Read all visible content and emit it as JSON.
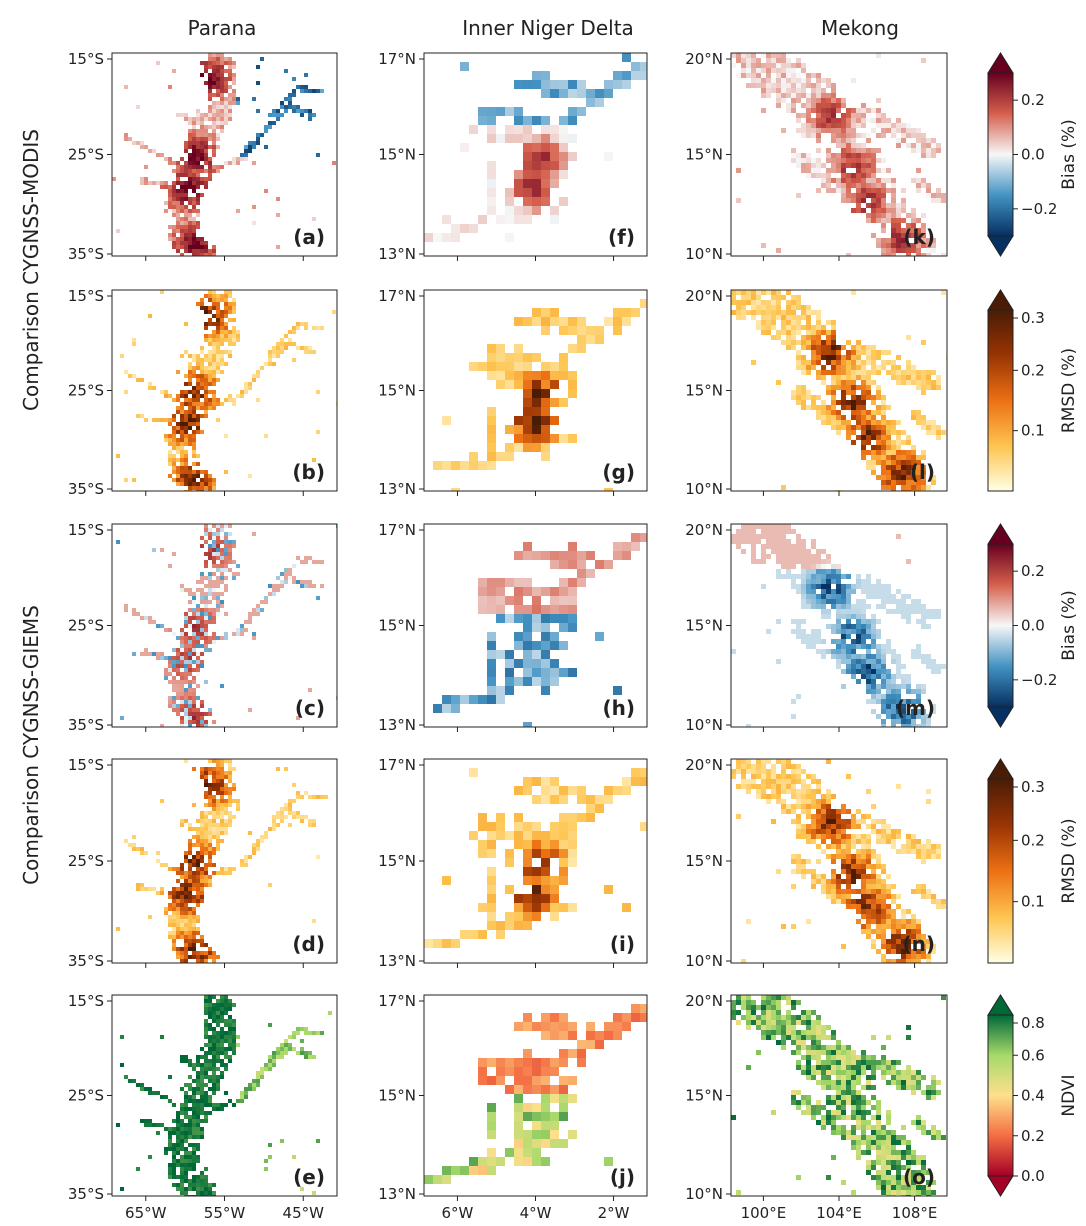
{
  "columns": [
    {
      "title": "Parana",
      "x_ticks": [
        "65°W",
        "55°W",
        "45°W"
      ],
      "y_ticks": [
        "15°S",
        "25°S",
        "35°S"
      ],
      "region": "parana"
    },
    {
      "title": "Inner Niger Delta",
      "x_ticks": [
        "6°W",
        "4°W",
        "2°W"
      ],
      "y_ticks": [
        "17°N",
        "15°N",
        "13°N"
      ],
      "region": "niger"
    },
    {
      "title": "Mekong",
      "x_ticks": [
        "100°E",
        "104°E",
        "108°E"
      ],
      "y_ticks": [
        "20°N",
        "15°N",
        "10°N"
      ],
      "region": "mekong"
    }
  ],
  "row_groups": [
    {
      "label": "Comparison CYGNSS-MODIS",
      "rows": [
        0,
        1
      ]
    },
    {
      "label": "Comparison CYGNSS-GIEMS",
      "rows": [
        2,
        3
      ]
    }
  ],
  "rows": [
    {
      "metric": "Bias (%)",
      "colormap": "RdBu_r",
      "range": [
        -0.3,
        0.3
      ],
      "ticks": [
        "0.2",
        "0.0",
        "−0.2"
      ],
      "panel_labels": [
        "(a)",
        "(f)",
        "(k)"
      ]
    },
    {
      "metric": "RMSD (%)",
      "colormap": "YlOrBr",
      "range": [
        0.0,
        0.3
      ],
      "ticks": [
        "0.3",
        "0.2",
        "0.1"
      ],
      "panel_labels": [
        "(b)",
        "(g)",
        "(l)"
      ]
    },
    {
      "metric": "Bias (%)",
      "colormap": "RdBu_r",
      "range": [
        -0.3,
        0.3
      ],
      "ticks": [
        "0.2",
        "0.0",
        "−0.2"
      ],
      "panel_labels": [
        "(c)",
        "(h)",
        "(m)"
      ]
    },
    {
      "metric": "RMSD (%)",
      "colormap": "YlOrBr",
      "range": [
        0.0,
        0.3
      ],
      "ticks": [
        "0.3",
        "0.2",
        "0.1"
      ],
      "panel_labels": [
        "(d)",
        "(i)",
        "(n)"
      ]
    },
    {
      "metric": "NDVI",
      "colormap": "RdYlGn",
      "range": [
        0.0,
        0.8
      ],
      "ticks": [
        "0.8",
        "0.6",
        "0.4",
        "0.2",
        "0.0"
      ],
      "panel_labels": [
        "(e)",
        "(j)",
        "(o)"
      ]
    }
  ],
  "chart_data": {
    "type": "heatmap",
    "description_kind": "geographic grid maps, 5 rows x 3 columns",
    "colorbars": [
      {
        "label": "Bias (%)",
        "min": -0.3,
        "max": 0.3,
        "ticks": [
          0.2,
          0.0,
          -0.2
        ],
        "extend": "both",
        "colors": [
          "#053061",
          "#4393c3",
          "#f7f7f7",
          "#d6604d",
          "#67001f"
        ]
      },
      {
        "label": "RMSD (%)",
        "min": 0.0,
        "max": 0.3,
        "ticks": [
          0.1,
          0.2,
          0.3
        ],
        "extend": "max",
        "colors": [
          "#ffffe5",
          "#fec44f",
          "#ec7014",
          "#993404",
          "#4a1c05"
        ]
      },
      {
        "label": "Bias (%)",
        "min": -0.3,
        "max": 0.3,
        "ticks": [
          0.2,
          0.0,
          -0.2
        ],
        "extend": "both",
        "colors": [
          "#053061",
          "#4393c3",
          "#f7f7f7",
          "#d6604d",
          "#67001f"
        ]
      },
      {
        "label": "RMSD (%)",
        "min": 0.0,
        "max": 0.3,
        "ticks": [
          0.1,
          0.2,
          0.3
        ],
        "extend": "max",
        "colors": [
          "#ffffe5",
          "#fec44f",
          "#ec7014",
          "#993404",
          "#4a1c05"
        ]
      },
      {
        "label": "NDVI",
        "min": 0.0,
        "max": 0.8,
        "ticks": [
          0.0,
          0.2,
          0.4,
          0.6,
          0.8
        ],
        "extend": "both",
        "colors": [
          "#a50026",
          "#f46d43",
          "#fee08b",
          "#a6d96a",
          "#006837"
        ]
      }
    ]
  }
}
